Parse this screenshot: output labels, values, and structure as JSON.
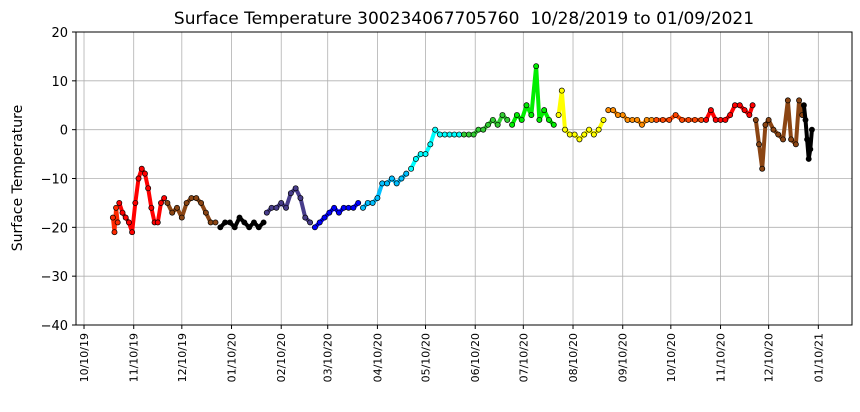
{
  "chart_data": {
    "type": "scatter",
    "title": "Surface Temperature 300234067705760  10/28/2019 to 01/09/2021",
    "y_label": "Surface Temperature",
    "grid": true,
    "xlim": [
      "2019-10-05",
      "2021-01-31"
    ],
    "ylim": [
      -40,
      20
    ],
    "yticks": [
      {
        "value": -40,
        "label": "−40"
      },
      {
        "value": -30,
        "label": "−30"
      },
      {
        "value": -20,
        "label": "−20"
      },
      {
        "value": -10,
        "label": "−10"
      },
      0,
      10,
      20
    ],
    "xticks": [
      {
        "value": "2019-10-10",
        "label": "10/10/19"
      },
      {
        "value": "2019-11-10",
        "label": "11/10/19"
      },
      {
        "value": "2019-12-10",
        "label": "12/10/19"
      },
      {
        "value": "2020-01-10",
        "label": "01/10/20"
      },
      {
        "value": "2020-02-10",
        "label": "02/10/20"
      },
      {
        "value": "2020-03-10",
        "label": "03/10/20"
      },
      {
        "value": "2020-04-10",
        "label": "04/10/20"
      },
      {
        "value": "2020-05-10",
        "label": "05/10/20"
      },
      {
        "value": "2020-06-10",
        "label": "06/10/20"
      },
      {
        "value": "2020-07-10",
        "label": "07/10/20"
      },
      {
        "value": "2020-08-10",
        "label": "08/10/20"
      },
      {
        "value": "2020-09-10",
        "label": "09/10/20"
      },
      {
        "value": "2020-10-10",
        "label": "10/10/20"
      },
      {
        "value": "2020-11-10",
        "label": "11/10/20"
      },
      {
        "value": "2020-12-10",
        "label": "12/10/20"
      },
      {
        "value": "2021-01-10",
        "label": "01/10/21"
      }
    ],
    "series": [
      {
        "color": "#ff2a00",
        "x": [
          "2019-10-28",
          "2019-10-29",
          "2019-10-30",
          "2019-10-31"
        ],
        "values": [
          -18,
          -21,
          -16,
          -19
        ]
      },
      {
        "color": "#ff0000",
        "x": [
          "2019-11-01",
          "2019-11-03",
          "2019-11-05",
          "2019-11-07",
          "2019-11-09",
          "2019-11-11",
          "2019-11-13",
          "2019-11-15",
          "2019-11-17",
          "2019-11-19",
          "2019-11-21",
          "2019-11-23",
          "2019-11-25",
          "2019-11-27",
          "2019-11-29"
        ],
        "values": [
          -15,
          -17,
          -18,
          -19,
          -21,
          -15,
          -10,
          -8,
          -9,
          -12,
          -16,
          -19,
          -19,
          -15,
          -14
        ]
      },
      {
        "color": "#8b4513",
        "x": [
          "2019-12-01",
          "2019-12-04",
          "2019-12-07",
          "2019-12-10",
          "2019-12-13",
          "2019-12-16",
          "2019-12-19",
          "2019-12-22",
          "2019-12-25",
          "2019-12-28",
          "2019-12-31"
        ],
        "values": [
          -15,
          -17,
          -16,
          -18,
          -15,
          -14,
          -14,
          -15,
          -17,
          -19,
          -19
        ]
      },
      {
        "color": "#000000",
        "x": [
          "2020-01-03",
          "2020-01-06",
          "2020-01-09",
          "2020-01-12",
          "2020-01-15",
          "2020-01-18",
          "2020-01-21",
          "2020-01-24",
          "2020-01-27",
          "2020-01-30"
        ],
        "values": [
          -20,
          -19,
          -19,
          -20,
          -18,
          -19,
          -20,
          -19,
          -20,
          -19
        ]
      },
      {
        "color": "#483d8b",
        "x": [
          "2020-02-01",
          "2020-02-04",
          "2020-02-07",
          "2020-02-10",
          "2020-02-13",
          "2020-02-16",
          "2020-02-19",
          "2020-02-22",
          "2020-02-25",
          "2020-02-28"
        ],
        "values": [
          -17,
          -16,
          -16,
          -15,
          -16,
          -13,
          -12,
          -14,
          -18,
          -19
        ]
      },
      {
        "color": "#0000ff",
        "x": [
          "2020-03-02",
          "2020-03-05",
          "2020-03-08",
          "2020-03-11",
          "2020-03-14",
          "2020-03-17",
          "2020-03-20",
          "2020-03-23",
          "2020-03-26",
          "2020-03-29"
        ],
        "values": [
          -20,
          -19,
          -18,
          -17,
          -16,
          -17,
          -16,
          -16,
          -16,
          -15
        ]
      },
      {
        "color": "#00bfff",
        "x": [
          "2020-04-01",
          "2020-04-04",
          "2020-04-07",
          "2020-04-10",
          "2020-04-13",
          "2020-04-16",
          "2020-04-19",
          "2020-04-22",
          "2020-04-25",
          "2020-04-28"
        ],
        "values": [
          -16,
          -15,
          -15,
          -14,
          -11,
          -11,
          -10,
          -11,
          -10,
          -9
        ]
      },
      {
        "color": "#00ffff",
        "x": [
          "2020-05-01",
          "2020-05-04",
          "2020-05-07",
          "2020-05-10",
          "2020-05-13",
          "2020-05-16",
          "2020-05-19",
          "2020-05-22",
          "2020-05-25",
          "2020-05-28",
          "2020-05-31"
        ],
        "values": [
          -8,
          -6,
          -5,
          -5,
          -3,
          0,
          -1,
          -1,
          -1,
          -1,
          -1
        ]
      },
      {
        "color": "#32cd32",
        "x": [
          "2020-06-03",
          "2020-06-06",
          "2020-06-09",
          "2020-06-12",
          "2020-06-15",
          "2020-06-18",
          "2020-06-21",
          "2020-06-24",
          "2020-06-27",
          "2020-06-30"
        ],
        "values": [
          -1,
          -1,
          -1,
          0,
          0,
          1,
          2,
          1,
          3,
          2
        ]
      },
      {
        "color": "#00ee00",
        "x": [
          "2020-07-03",
          "2020-07-06",
          "2020-07-09",
          "2020-07-12",
          "2020-07-15",
          "2020-07-18",
          "2020-07-20",
          "2020-07-23",
          "2020-07-26",
          "2020-07-29"
        ],
        "values": [
          1,
          3,
          2,
          5,
          3,
          13,
          2,
          4,
          2,
          1
        ]
      },
      {
        "color": "#ffff00",
        "x": [
          "2020-08-01",
          "2020-08-03",
          "2020-08-05",
          "2020-08-08",
          "2020-08-11",
          "2020-08-14",
          "2020-08-17",
          "2020-08-20",
          "2020-08-23",
          "2020-08-26",
          "2020-08-29"
        ],
        "values": [
          3,
          8,
          0,
          -1,
          -1,
          -2,
          -1,
          0,
          -1,
          0,
          2
        ]
      },
      {
        "color": "#ff8c00",
        "x": [
          "2020-09-01",
          "2020-09-04",
          "2020-09-07",
          "2020-09-10",
          "2020-09-13",
          "2020-09-16",
          "2020-09-19",
          "2020-09-22",
          "2020-09-25",
          "2020-09-28"
        ],
        "values": [
          4,
          4,
          3,
          3,
          2,
          2,
          2,
          1,
          2,
          2
        ]
      },
      {
        "color": "#ff4500",
        "x": [
          "2020-10-01",
          "2020-10-05",
          "2020-10-09",
          "2020-10-13",
          "2020-10-17",
          "2020-10-21",
          "2020-10-25",
          "2020-10-29"
        ],
        "values": [
          2,
          2,
          2,
          3,
          2,
          2,
          2,
          2
        ]
      },
      {
        "color": "#ff0000",
        "x": [
          "2020-11-01",
          "2020-11-04",
          "2020-11-07",
          "2020-11-10",
          "2020-11-13",
          "2020-11-16",
          "2020-11-19",
          "2020-11-22",
          "2020-11-25",
          "2020-11-28",
          "2020-11-30"
        ],
        "values": [
          2,
          4,
          2,
          2,
          2,
          3,
          5,
          5,
          4,
          3,
          5
        ]
      },
      {
        "color": "#8b4513",
        "x": [
          "2020-12-02",
          "2020-12-04",
          "2020-12-06",
          "2020-12-08",
          "2020-12-10",
          "2020-12-13",
          "2020-12-16",
          "2020-12-19",
          "2020-12-22",
          "2020-12-24",
          "2020-12-27",
          "2020-12-29",
          "2020-12-31"
        ],
        "values": [
          2,
          -3,
          -8,
          1,
          2,
          0,
          -1,
          -2,
          6,
          -2,
          -3,
          6,
          3
        ]
      },
      {
        "color": "#000000",
        "x": [
          "2021-01-01",
          "2021-01-02",
          "2021-01-03",
          "2021-01-04",
          "2021-01-05",
          "2021-01-06"
        ],
        "values": [
          5,
          2,
          -2,
          -6,
          -4,
          0
        ]
      }
    ]
  }
}
